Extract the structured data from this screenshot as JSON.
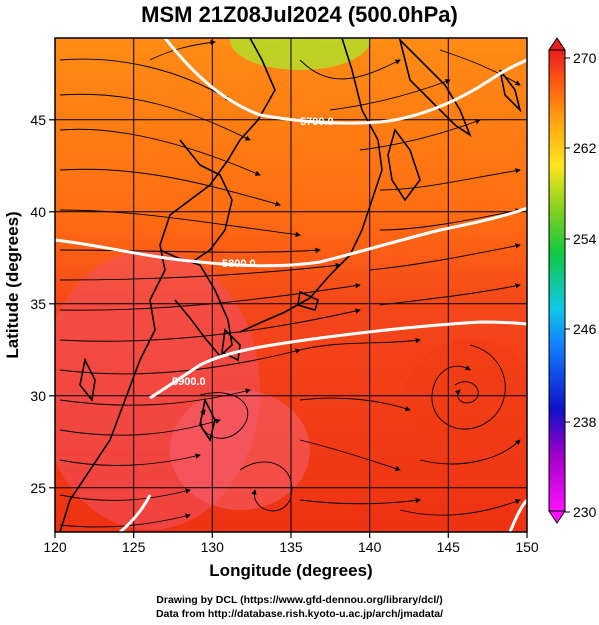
{
  "title": "MSM 21Z08Jul2024 (500.0hPa)",
  "xaxis": {
    "label": "Longitude (degrees)",
    "ticks": [
      "120",
      "125",
      "130",
      "135",
      "140",
      "145",
      "150"
    ],
    "range": [
      120,
      150
    ]
  },
  "yaxis": {
    "label": "Latitude (degrees)",
    "ticks": [
      "25",
      "30",
      "35",
      "40",
      "45"
    ],
    "range": [
      22.4,
      47.6
    ]
  },
  "colorbar": {
    "ticks": [
      "270",
      "262",
      "254",
      "246",
      "238",
      "230"
    ],
    "range": [
      230,
      270
    ]
  },
  "contours": [
    {
      "label": "5700.0",
      "lon": 137.8,
      "lat": 44.8
    },
    {
      "label": "5800.0",
      "lon": 133.0,
      "lat": 37.4
    },
    {
      "label": "5900.0",
      "lon": 130.0,
      "lat": 31.2
    }
  ],
  "credits": {
    "line1": "Drawing by DCL (https://www.gfd-dennou.org/library/dcl/)",
    "line2": "Data from http://database.rish.kyoto-u.ac.jp/arch/jmadata/"
  },
  "colors": {
    "warm": "#f23c10",
    "mid": "#ff7a10",
    "cool": "#ffd21e",
    "green": "#b8e020",
    "pink": "#f45070",
    "contour": "#ffffff",
    "vector": "#000000"
  }
}
